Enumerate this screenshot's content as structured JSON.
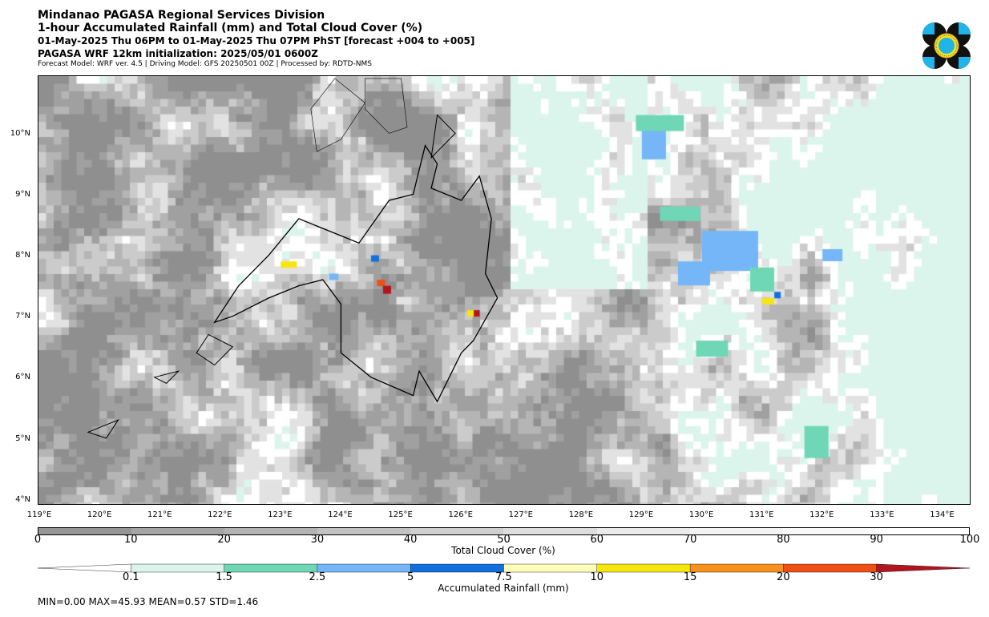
{
  "header": {
    "title": "Mindanao PAGASA Regional Services Division",
    "subtitle": "1-hour Accumulated Rainfall (mm) and Total Cloud Cover (%)",
    "valid_period": "01-May-2025 Thu 06PM to 01-May-2025 Thu 07PM PhST [forecast +004 to +005]",
    "initialization": "PAGASA WRF 12km initialization: 2025/05/01 0600Z",
    "model_info": "Forecast Model: WRF ver. 4.5 | Driving Model: GFS 20250501 00Z | Processed by: RDTD-NMS"
  },
  "map": {
    "lat_range": [
      3.9,
      10.9
    ],
    "lon_range": [
      119.0,
      134.5
    ],
    "lat_labels": [
      "10°N",
      "9°N",
      "8°N",
      "7°N",
      "6°N",
      "5°N",
      "4°N"
    ],
    "lon_labels": [
      "119°E",
      "120°E",
      "121°E",
      "122°E",
      "123°E",
      "124°E",
      "125°E",
      "126°E",
      "127°E",
      "128°E",
      "129°E",
      "130°E",
      "131°E",
      "132°E",
      "133°E",
      "134°E"
    ]
  },
  "cloud_colorbar": {
    "label": "Total Cloud Cover (%)",
    "ticks": [
      "0",
      "10",
      "20",
      "30",
      "40",
      "50",
      "60",
      "70",
      "80",
      "90",
      "100"
    ],
    "colors": [
      "#969696",
      "#a5a5a5",
      "#b3b3b3",
      "#c2c2c2",
      "#d0d0d0",
      "#dedede",
      "#ebebeb",
      "#f3f3f3",
      "#f9f9f9",
      "#ffffff"
    ]
  },
  "rain_colorbar": {
    "label": "Accumulated Rainfall (mm)",
    "ticks": [
      "0.1",
      "1.5",
      "2.5",
      "5",
      "7.5",
      "10",
      "15",
      "20",
      "30"
    ],
    "colors": [
      "#ffffff",
      "#dcf5ec",
      "#6fd7b5",
      "#74b6f7",
      "#1270dd",
      "#fefebb",
      "#f6e610",
      "#f5911c",
      "#ee4f14",
      "#b4141e"
    ]
  },
  "stats": {
    "text": "MIN=0.00   MAX=45.93   MEAN=0.57   STD=1.46"
  }
}
